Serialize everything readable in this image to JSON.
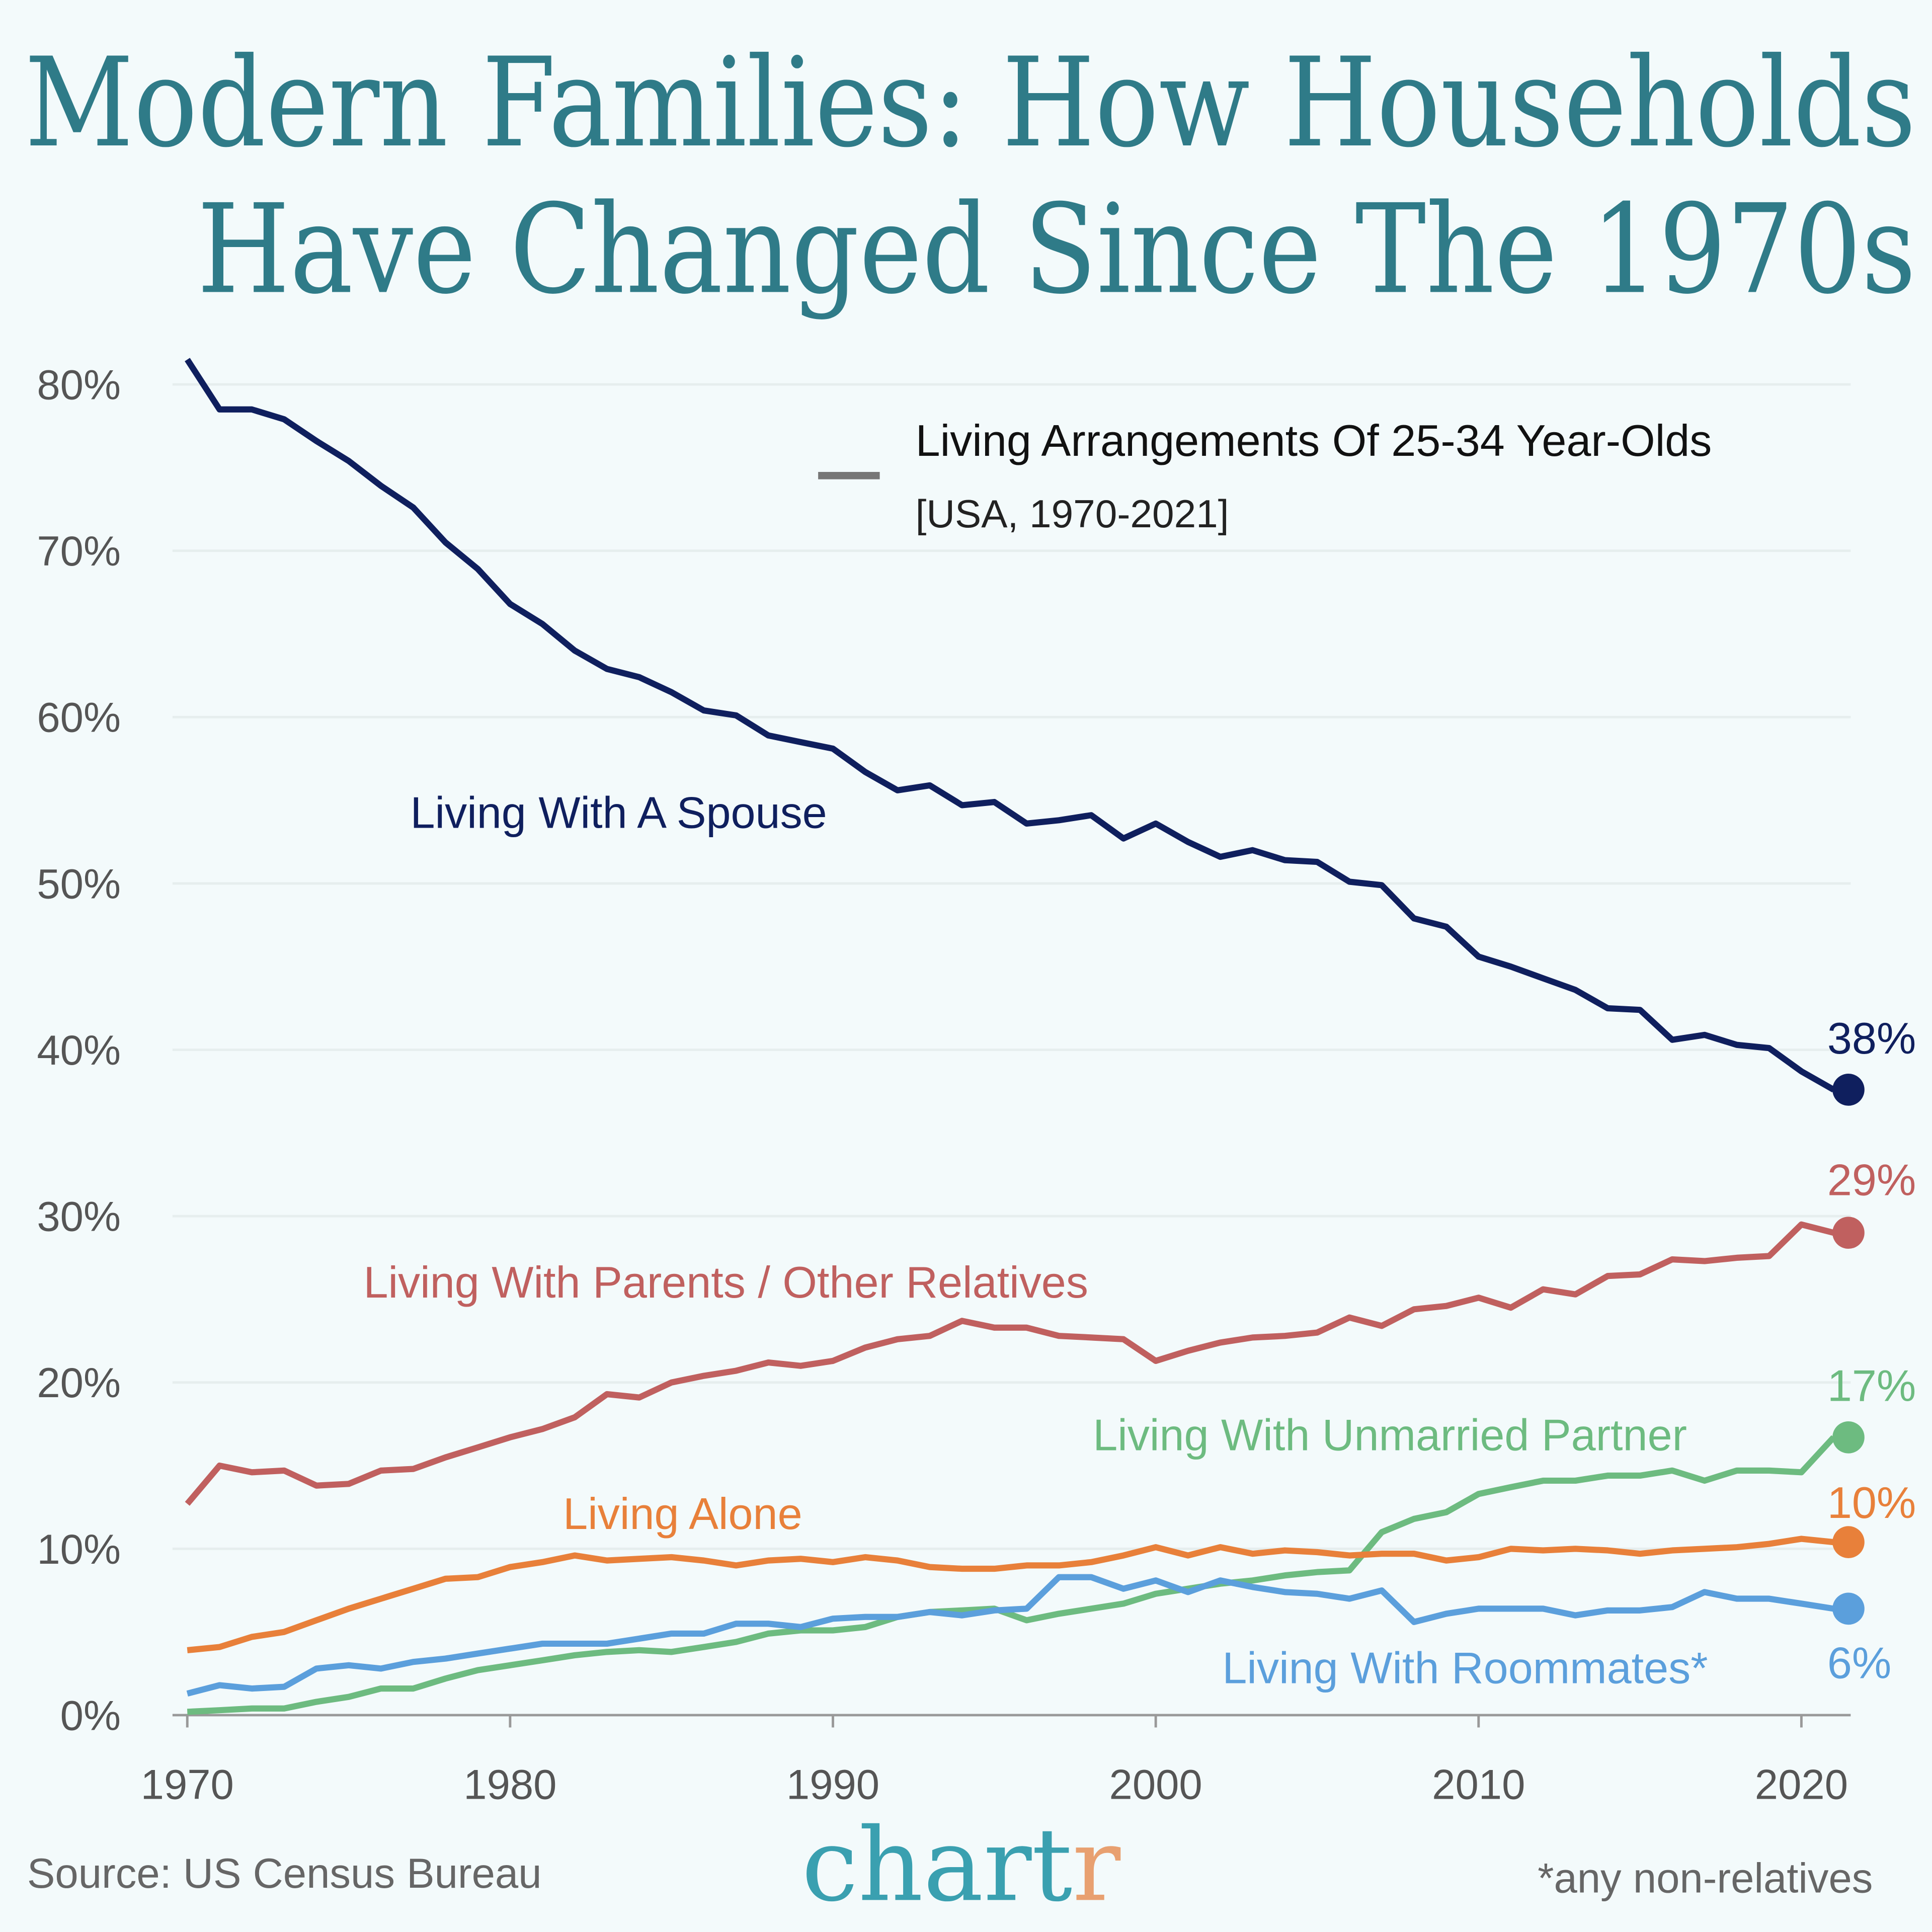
{
  "title_line1": "Modern Families: How Households",
  "title_line2": "Have Changed Since The 1970s",
  "colors": {
    "background": "#f3fafb",
    "title": "#2f7b88",
    "spouse": "#0f1f5e",
    "parents": "#c0605f",
    "alone": "#e8803a",
    "partner": "#6dbb80",
    "roommates": "#5b9fdc",
    "logo_main": "#3aa0b0",
    "logo_accent": "#e8a070"
  },
  "source": "Source: US Census Bureau",
  "footnote": "*any non-relatives",
  "logo_text": "chartr",
  "chart_data": {
    "type": "line",
    "title": "Living Arrangements Of 25-34 Year-Olds",
    "subtitle": "[USA, 1970-2021]",
    "xlabel": "",
    "ylabel": "",
    "xlim": [
      1970,
      2021
    ],
    "ylim": [
      0,
      80
    ],
    "x_ticks": [
      "1970",
      "1980",
      "1990",
      "2000",
      "2010",
      "2020"
    ],
    "y_ticks": [
      "0%",
      "10%",
      "20%",
      "30%",
      "40%",
      "50%",
      "60%",
      "70%",
      "80%"
    ],
    "grid": true,
    "x_start": 1970,
    "series": [
      {
        "name": "Living With A Spouse",
        "end_label": "38%",
        "color": "#0f1f5e",
        "values": [
          81.5,
          78.5,
          78.5,
          77.9,
          76.6,
          75.4,
          73.9,
          72.6,
          70.5,
          68.9,
          66.8,
          65.6,
          64.0,
          62.9,
          62.4,
          61.5,
          60.4,
          60.1,
          58.9,
          58.5,
          58.1,
          56.7,
          55.6,
          55.9,
          54.7,
          54.9,
          53.6,
          53.8,
          54.1,
          52.7,
          53.6,
          52.5,
          51.6,
          52.0,
          51.4,
          51.3,
          50.1,
          49.9,
          47.9,
          47.4,
          45.6,
          45.0,
          44.3,
          43.6,
          42.5,
          42.4,
          40.6,
          40.9,
          40.3,
          40.1,
          38.7,
          37.6
        ]
      },
      {
        "name": "Living With Parents / Other Relatives",
        "end_label": "29%",
        "color": "#c0605f",
        "values": [
          12.7,
          15.0,
          14.6,
          14.7,
          13.8,
          13.9,
          14.7,
          14.8,
          15.5,
          16.1,
          16.7,
          17.2,
          17.9,
          19.3,
          19.1,
          20.0,
          20.4,
          20.7,
          21.2,
          21.0,
          21.3,
          22.1,
          22.6,
          22.8,
          23.7,
          23.3,
          23.3,
          22.8,
          22.7,
          22.6,
          21.3,
          21.9,
          22.4,
          22.7,
          22.8,
          23.0,
          23.9,
          23.4,
          24.4,
          24.6,
          25.1,
          24.5,
          25.6,
          25.3,
          26.4,
          26.5,
          27.4,
          27.3,
          27.5,
          27.6,
          29.5,
          29.0
        ]
      },
      {
        "name": "Living With Unmarried Partner",
        "end_label": "17%",
        "color": "#6dbb80",
        "values": [
          0.2,
          0.3,
          0.4,
          0.4,
          0.8,
          1.1,
          1.6,
          1.6,
          2.2,
          2.7,
          3.0,
          3.3,
          3.6,
          3.8,
          3.9,
          3.8,
          4.1,
          4.4,
          4.9,
          5.1,
          5.1,
          5.3,
          5.9,
          6.2,
          6.3,
          6.4,
          5.7,
          6.1,
          6.4,
          6.7,
          7.3,
          7.6,
          7.9,
          8.1,
          8.4,
          8.6,
          8.7,
          11.0,
          11.8,
          12.2,
          13.3,
          13.7,
          14.1,
          14.1,
          14.4,
          14.4,
          14.7,
          14.1,
          14.7,
          14.7,
          14.6,
          16.7
        ]
      },
      {
        "name": "Living Alone",
        "end_label": "10%",
        "color": "#e8803a",
        "values": [
          3.9,
          4.1,
          4.7,
          5.0,
          5.7,
          6.4,
          7.0,
          7.6,
          8.2,
          8.3,
          8.9,
          9.2,
          9.6,
          9.3,
          9.4,
          9.5,
          9.3,
          9.0,
          9.3,
          9.4,
          9.2,
          9.5,
          9.3,
          8.9,
          8.8,
          8.8,
          9.0,
          9.0,
          9.2,
          9.6,
          10.1,
          9.6,
          10.1,
          9.7,
          9.9,
          9.8,
          9.6,
          9.7,
          9.7,
          9.3,
          9.5,
          10.0,
          9.9,
          10.0,
          9.9,
          9.7,
          9.9,
          10.0,
          10.1,
          10.3,
          10.6,
          10.4
        ]
      },
      {
        "name": "Living With Roommates*",
        "end_label": "6%",
        "color": "#5b9fdc",
        "values": [
          1.3,
          1.8,
          1.6,
          1.7,
          2.8,
          3.0,
          2.8,
          3.2,
          3.4,
          3.7,
          4.0,
          4.3,
          4.3,
          4.3,
          4.6,
          4.9,
          4.9,
          5.5,
          5.5,
          5.3,
          5.8,
          5.9,
          5.9,
          6.2,
          6.0,
          6.3,
          6.4,
          8.3,
          8.3,
          7.6,
          8.1,
          7.4,
          8.1,
          7.7,
          7.4,
          7.3,
          7.0,
          7.5,
          5.6,
          6.1,
          6.4,
          6.4,
          6.4,
          6.0,
          6.3,
          6.3,
          6.5,
          7.4,
          7.0,
          7.0,
          6.7,
          6.4
        ]
      }
    ]
  }
}
